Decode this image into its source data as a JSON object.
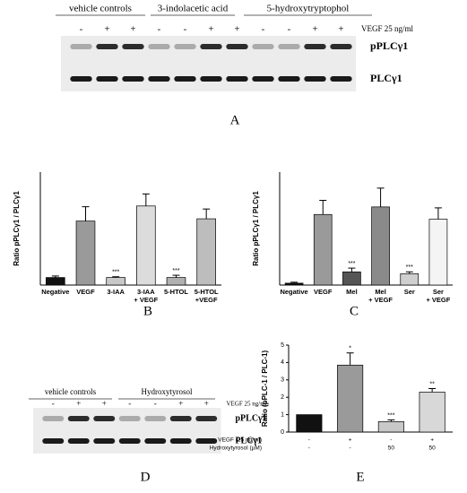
{
  "blot_a": {
    "headers": [
      "vehicle controls",
      "3-indolacetic acid",
      "5-hydroxytryptophol"
    ],
    "treatment": "VEGF 25 ng/ml",
    "lanes": [
      "-",
      "+",
      "+",
      "-",
      "-",
      "+",
      "+",
      "-",
      "-",
      "+",
      "+"
    ],
    "rows": [
      "pPLCγ1",
      "PLCγ1"
    ],
    "panel": "A"
  },
  "blot_d": {
    "headers": [
      "vehicle controls",
      "Hydroxytyrosol"
    ],
    "treatment": "VEGF 25 ng/ml",
    "lanes": [
      "-",
      "+",
      "+",
      "-",
      "-",
      "+",
      "+"
    ],
    "rows": [
      "pPLCγ1",
      "PLCγ1"
    ],
    "panel": "D"
  },
  "chart_data": [
    {
      "type": "bar",
      "panel": "B",
      "ylabel": "Ratio pPLCγ1 / PLCγ1",
      "categories": [
        [
          "Negative"
        ],
        [
          "VEGF"
        ],
        [
          "3-IAA"
        ],
        [
          "3-IAA",
          "+ VEGF"
        ],
        [
          "5-HTOL"
        ],
        [
          "5-HTOL",
          "+VEGF"
        ]
      ],
      "values": [
        1,
        8.5,
        1,
        10.5,
        1,
        8.8
      ],
      "errors": [
        0.2,
        1.9,
        0.1,
        1.6,
        0.3,
        1.3
      ],
      "annotations": [
        null,
        null,
        "***",
        null,
        "***",
        null
      ],
      "colors": [
        "#111111",
        "#9a9a9a",
        "#c8c8c8",
        "#dcdcdc",
        "#b0b0b0",
        "#bdbdbd"
      ],
      "ylim": [
        0,
        15
      ]
    },
    {
      "type": "bar",
      "panel": "C",
      "ylabel": "Ratio pPLCγ1 / PLCγ1",
      "categories": [
        [
          "Negative"
        ],
        [
          "VEGF"
        ],
        [
          "Mel"
        ],
        [
          "Mel",
          "+ VEGF"
        ],
        [
          "Ser"
        ],
        [
          "Ser",
          "+ VEGF"
        ]
      ],
      "values": [
        0.2,
        7.5,
        1.4,
        8.3,
        1.2,
        7
      ],
      "errors": [
        0.1,
        1.5,
        0.4,
        2,
        0.2,
        1.2
      ],
      "annotations": [
        null,
        null,
        "***",
        null,
        "***",
        null
      ],
      "colors": [
        "#111111",
        "#9a9a9a",
        "#555555",
        "#8a8a8a",
        "#cfcfcf",
        "#f4f4f4"
      ],
      "ylim": [
        0,
        12
      ]
    },
    {
      "type": "bar",
      "panel": "E",
      "ylabel": "Ratio (pPLC-1 / PLC-1)",
      "conditions": [
        {
          "label": "VEGF (25 ng/ml)",
          "values": [
            "-",
            "+",
            "-",
            "+"
          ]
        },
        {
          "label": "Hydroxytyrosol (µM)",
          "values": [
            "-",
            "-",
            "50",
            "50"
          ]
        }
      ],
      "values": [
        1,
        3.85,
        0.6,
        2.3
      ],
      "errors": [
        0,
        0.7,
        0.1,
        0.2
      ],
      "annotations": [
        null,
        "*",
        "***",
        "**"
      ],
      "colors": [
        "#111111",
        "#9a9a9a",
        "#c8c8c8",
        "#d8d8d8"
      ],
      "ylim": [
        0,
        5
      ],
      "yticks": [
        0,
        1,
        2,
        3,
        4,
        5
      ]
    }
  ]
}
